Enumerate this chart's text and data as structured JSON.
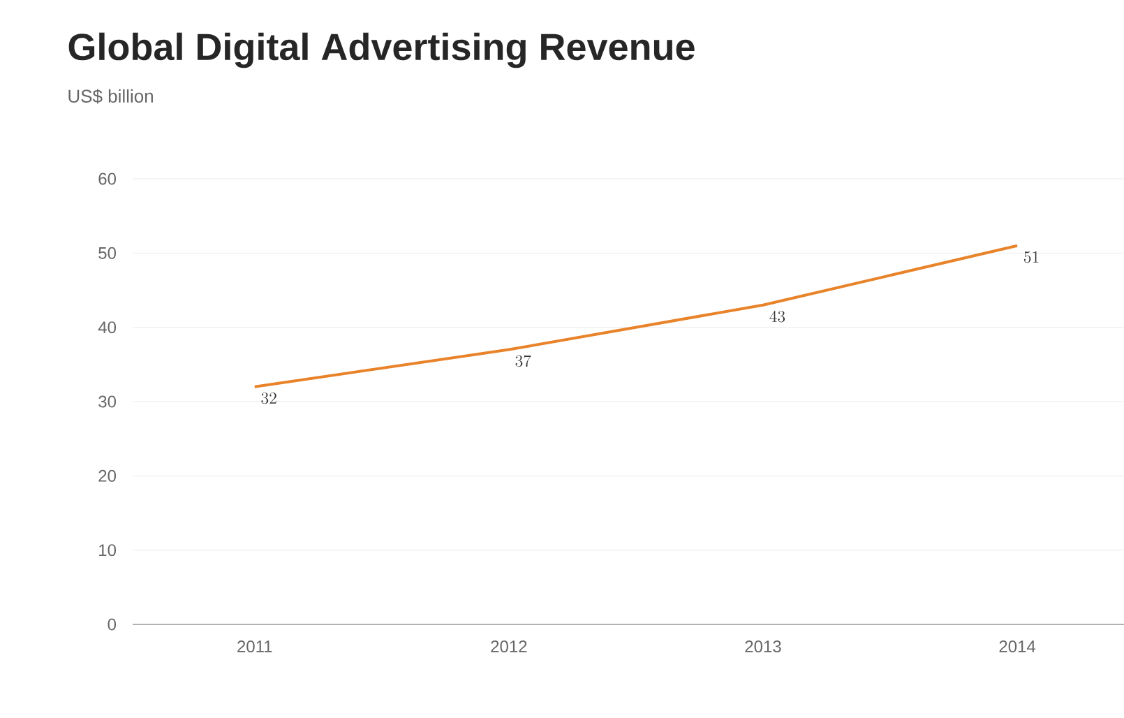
{
  "chart_data": {
    "type": "line",
    "title": "Global Digital Advertising Revenue",
    "subtitle": "US$ billion",
    "categories": [
      "2011",
      "2012",
      "2013",
      "2014"
    ],
    "values": [
      32,
      37,
      43,
      51
    ],
    "color": "#e8832a",
    "ylim": [
      0,
      60
    ],
    "yticks": [
      0,
      10,
      20,
      30,
      40,
      50,
      60
    ],
    "grid": "y",
    "data_labels": true
  }
}
